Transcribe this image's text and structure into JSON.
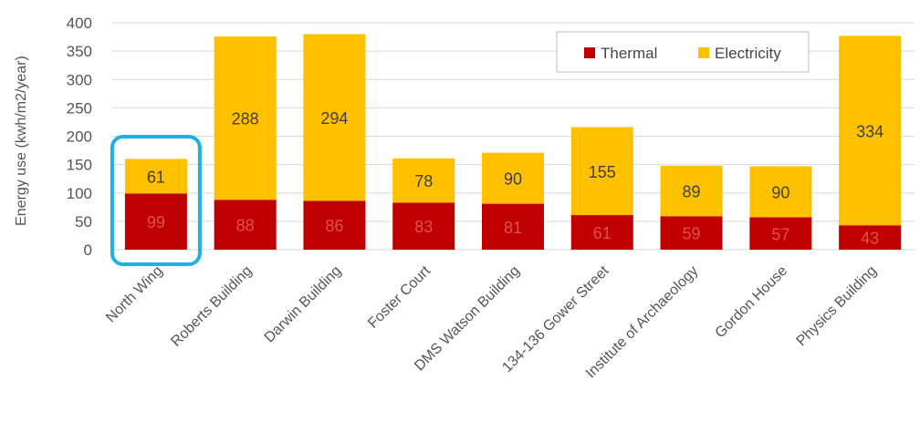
{
  "chart_data": {
    "type": "bar",
    "stacked": true,
    "title": "",
    "xlabel": "",
    "ylabel": "Energy use (kwh/m2/year)",
    "ylim": [
      0,
      400
    ],
    "yticks": [
      0,
      50,
      100,
      150,
      200,
      250,
      300,
      350,
      400
    ],
    "grid": true,
    "legend_position": "top-right",
    "categories": [
      "North Wing",
      "Roberts Building",
      "Darwin Building",
      "Foster Court",
      "DMS Watson Building",
      "134-136 Gower Street",
      "Institute of Archaeology",
      "Gordon House",
      "Physics Building"
    ],
    "series": [
      {
        "name": "Thermal",
        "color": "#c00000",
        "label_color": "#e05050",
        "values": [
          99,
          88,
          86,
          83,
          81,
          61,
          59,
          57,
          43
        ]
      },
      {
        "name": "Electricity",
        "color": "#ffc000",
        "label_color": "#404040",
        "values": [
          61,
          288,
          294,
          78,
          90,
          155,
          89,
          90,
          334
        ]
      }
    ],
    "highlight": {
      "category": "North Wing",
      "color": "#1fb0e8"
    }
  }
}
